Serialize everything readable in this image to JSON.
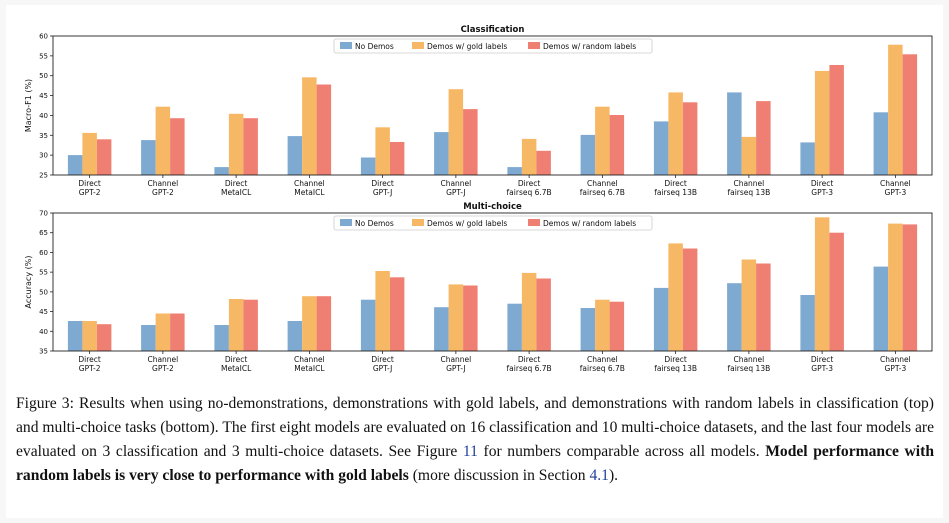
{
  "charts": [
    {
      "type": "bar",
      "title": "Classification",
      "ylabel": "Macro-F1 (%)",
      "ylim": [
        25,
        60
      ],
      "yticks": [
        25,
        30,
        35,
        40,
        45,
        50,
        55,
        60
      ],
      "legend": "top-center",
      "categories": [
        [
          "Direct",
          "GPT-2"
        ],
        [
          "Channel",
          "GPT-2"
        ],
        [
          "Direct",
          "MetaICL"
        ],
        [
          "Channel",
          "MetaICL"
        ],
        [
          "Direct",
          "GPT-J"
        ],
        [
          "Channel",
          "GPT-J"
        ],
        [
          "Direct",
          "fairseq 6.7B"
        ],
        [
          "Channel",
          "fairseq 6.7B"
        ],
        [
          "Direct",
          "fairseq 13B"
        ],
        [
          "Channel",
          "fairseq 13B"
        ],
        [
          "Direct",
          "GPT-3"
        ],
        [
          "Channel",
          "GPT-3"
        ]
      ],
      "series": [
        {
          "name": "No Demos",
          "color": "#7eaad2",
          "values": [
            30.0,
            33.8,
            27.0,
            34.8,
            29.4,
            35.8,
            27.0,
            35.1,
            38.5,
            45.8,
            33.2,
            40.8
          ]
        },
        {
          "name": "Demos w/ gold labels",
          "color": "#f7b866",
          "values": [
            35.6,
            42.2,
            40.4,
            49.6,
            37.0,
            46.6,
            34.1,
            42.2,
            45.8,
            34.6,
            51.2,
            57.8
          ]
        },
        {
          "name": "Demos w/ random labels",
          "color": "#f07f73",
          "values": [
            34.0,
            39.3,
            39.3,
            47.8,
            33.3,
            41.6,
            31.1,
            40.1,
            43.3,
            43.6,
            52.7,
            55.4
          ]
        }
      ]
    },
    {
      "type": "bar",
      "title": "Multi-choice",
      "ylabel": "Accuracy (%)",
      "ylim": [
        35,
        70
      ],
      "yticks": [
        35,
        40,
        45,
        50,
        55,
        60,
        65,
        70
      ],
      "legend": "top-center",
      "categories": [
        [
          "Direct",
          "GPT-2"
        ],
        [
          "Channel",
          "GPT-2"
        ],
        [
          "Direct",
          "MetaICL"
        ],
        [
          "Channel",
          "MetaICL"
        ],
        [
          "Direct",
          "GPT-J"
        ],
        [
          "Channel",
          "GPT-J"
        ],
        [
          "Direct",
          "fairseq 6.7B"
        ],
        [
          "Channel",
          "fairseq 6.7B"
        ],
        [
          "Direct",
          "fairseq 13B"
        ],
        [
          "Channel",
          "fairseq 13B"
        ],
        [
          "Direct",
          "GPT-3"
        ],
        [
          "Channel",
          "GPT-3"
        ]
      ],
      "series": [
        {
          "name": "No Demos",
          "color": "#7eaad2",
          "values": [
            42.6,
            41.6,
            41.6,
            42.6,
            48.0,
            46.1,
            47.0,
            45.9,
            51.0,
            52.2,
            49.2,
            56.4
          ]
        },
        {
          "name": "Demos w/ gold labels",
          "color": "#f7b866",
          "values": [
            42.6,
            44.5,
            48.2,
            48.9,
            55.3,
            51.9,
            54.8,
            48.0,
            62.3,
            58.2,
            68.9,
            67.3
          ]
        },
        {
          "name": "Demos w/ random labels",
          "color": "#f07f73",
          "values": [
            41.8,
            44.5,
            48.0,
            48.9,
            53.7,
            51.6,
            53.4,
            47.5,
            61.0,
            57.2,
            65.0,
            67.1
          ]
        }
      ]
    }
  ],
  "caption": {
    "p1": "Figure 3: Results when using no-demonstrations, demonstrations with gold labels, and demonstrations with random labels in classification (top) and multi-choice tasks (bottom). The first eight models are evaluated on 16 classification and 10 multi-choice datasets, and the last four models are evaluated on 3 classification and 3 multi-choice datasets. See Figure ",
    "ref1": "11",
    "p2": " for numbers comparable across all models. ",
    "bold": "Model performance with random labels is very close to performance with gold labels",
    "p3": " (more discussion in Section ",
    "ref2": "4.1",
    "p4": ")."
  }
}
